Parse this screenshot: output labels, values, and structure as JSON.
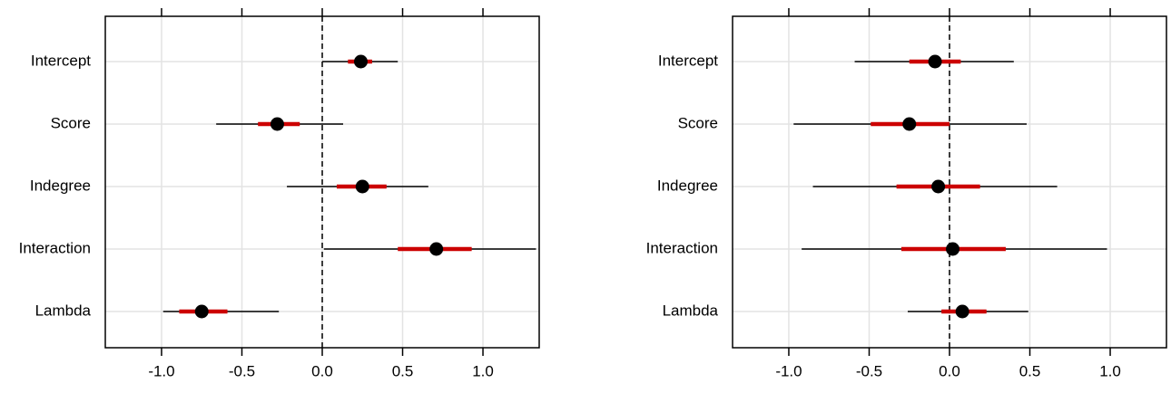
{
  "chart_data": [
    {
      "type": "forest",
      "categories": [
        "Intercept",
        "Score",
        "Indegree",
        "Interaction",
        "Lambda"
      ],
      "values": [
        0.24,
        -0.28,
        0.25,
        0.71,
        -0.75
      ],
      "inner_low": [
        0.16,
        -0.4,
        0.09,
        0.47,
        -0.89
      ],
      "inner_high": [
        0.31,
        -0.14,
        0.4,
        0.93,
        -0.59
      ],
      "outer_low": [
        0.0,
        -0.66,
        -0.22,
        0.01,
        -0.99
      ],
      "outer_high": [
        0.47,
        0.13,
        0.66,
        1.33,
        -0.27
      ],
      "colors": {
        "point": "#000000",
        "inner": "#cc0000",
        "outer": "#000000"
      },
      "xlim": [
        -1.35,
        1.35
      ],
      "xticks": [
        {
          "value": -1,
          "label": "-1.0"
        },
        -0.5,
        {
          "value": 0,
          "label": "0.0"
        },
        0.5,
        {
          "value": 1,
          "label": "1.0"
        }
      ],
      "grid": true,
      "ref_line": 0
    },
    {
      "type": "forest",
      "categories": [
        "Intercept",
        "Score",
        "Indegree",
        "Interaction",
        "Lambda"
      ],
      "values": [
        -0.09,
        -0.25,
        -0.07,
        0.02,
        0.08
      ],
      "inner_low": [
        -0.25,
        -0.49,
        -0.33,
        -0.3,
        -0.05
      ],
      "inner_high": [
        0.07,
        0.0,
        0.19,
        0.35,
        0.23
      ],
      "outer_low": [
        -0.59,
        -0.97,
        -0.85,
        -0.92,
        -0.26
      ],
      "outer_high": [
        0.4,
        0.48,
        0.67,
        0.98,
        0.49
      ],
      "colors": {
        "point": "#000000",
        "inner": "#cc0000",
        "outer": "#000000"
      },
      "xlim": [
        -1.35,
        1.35
      ],
      "xticks": [
        {
          "value": -1,
          "label": "-1.0"
        },
        -0.5,
        {
          "value": 0,
          "label": "0.0"
        },
        0.5,
        {
          "value": 1,
          "label": "1.0"
        }
      ],
      "grid": true,
      "ref_line": 0
    }
  ]
}
